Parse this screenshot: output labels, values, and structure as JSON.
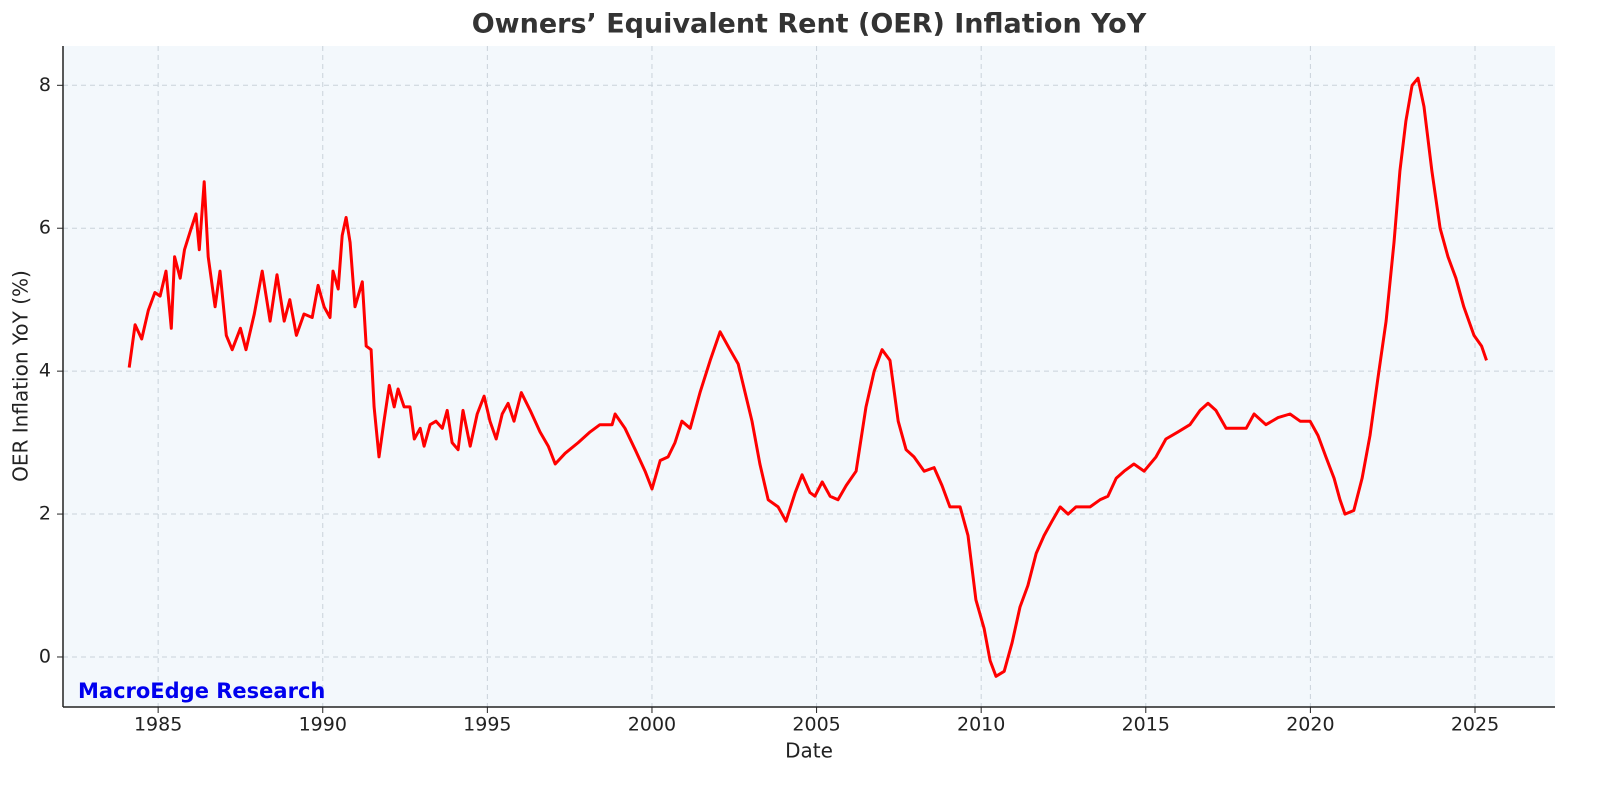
{
  "chart_data": {
    "type": "line",
    "title": "Owners’ Equivalent Rent (OER) Inflation YoY",
    "xlabel": "Date",
    "ylabel": "OER Inflation YoY (%)",
    "annotation": "MacroEdge Research",
    "grid": true,
    "xlim": [
      1982.11,
      2027.43
    ],
    "ylim": [
      -0.7,
      8.55
    ],
    "xticks": [
      1985,
      1990,
      1995,
      2000,
      2005,
      2010,
      2015,
      2020,
      2025
    ],
    "yticks": [
      0,
      2,
      4,
      6,
      8
    ],
    "series": [
      {
        "name": "OER Inflation YoY",
        "color": "#ff0000",
        "x": [
          1984.12,
          1984.3,
          1984.5,
          1984.7,
          1984.9,
          1985.06,
          1985.24,
          1985.4,
          1985.5,
          1985.67,
          1985.8,
          1985.97,
          1986.15,
          1986.25,
          1986.4,
          1986.52,
          1986.73,
          1986.88,
          1987.07,
          1987.25,
          1987.5,
          1987.67,
          1987.92,
          1988.16,
          1988.4,
          1988.61,
          1988.83,
          1989.0,
          1989.2,
          1989.43,
          1989.68,
          1989.86,
          1990.04,
          1990.22,
          1990.31,
          1990.47,
          1990.59,
          1990.71,
          1990.83,
          1990.98,
          1991.2,
          1991.32,
          1991.47,
          1991.56,
          1991.71,
          1991.86,
          1992.02,
          1992.17,
          1992.29,
          1992.47,
          1992.65,
          1992.78,
          1992.96,
          1993.08,
          1993.26,
          1993.44,
          1993.63,
          1993.78,
          1993.93,
          1994.11,
          1994.26,
          1994.48,
          1994.69,
          1994.9,
          1995.08,
          1995.27,
          1995.45,
          1995.63,
          1995.81,
          1996.03,
          1996.3,
          1996.6,
          1996.85,
          1997.06,
          1997.36,
          1997.76,
          1998.12,
          1998.42,
          1998.79,
          1998.88,
          1999.18,
          1999.49,
          1999.79,
          2000.0,
          2000.25,
          2000.49,
          2000.7,
          2000.91,
          2001.16,
          2001.46,
          2001.77,
          2002.07,
          2002.37,
          2002.62,
          2002.83,
          2003.04,
          2003.28,
          2003.53,
          2003.83,
          2004.07,
          2004.35,
          2004.56,
          2004.8,
          2004.95,
          2005.17,
          2005.41,
          2005.65,
          2005.9,
          2006.2,
          2006.5,
          2006.75,
          2006.99,
          2007.23,
          2007.48,
          2007.72,
          2007.96,
          2008.27,
          2008.57,
          2008.81,
          2009.05,
          2009.36,
          2009.6,
          2009.84,
          2010.09,
          2010.27,
          2010.45,
          2010.7,
          2010.94,
          2011.18,
          2011.42,
          2011.67,
          2011.91,
          2012.15,
          2012.4,
          2012.64,
          2012.88,
          2013.31,
          2013.61,
          2013.85,
          2014.1,
          2014.34,
          2014.64,
          2014.95,
          2015.31,
          2015.61,
          2015.98,
          2016.34,
          2016.65,
          2016.89,
          2017.13,
          2017.44,
          2017.74,
          2018.05,
          2018.29,
          2018.65,
          2019.02,
          2019.38,
          2019.69,
          2019.99,
          2020.23,
          2020.47,
          2020.72,
          2020.9,
          2021.05,
          2021.32,
          2021.57,
          2021.81,
          2022.05,
          2022.3,
          2022.54,
          2022.72,
          2022.9,
          2023.09,
          2023.27,
          2023.45,
          2023.69,
          2023.94,
          2024.18,
          2024.42,
          2024.66,
          2024.97,
          2025.2,
          2025.35
        ],
        "values": [
          4.05,
          4.65,
          4.45,
          4.85,
          5.1,
          5.05,
          5.4,
          4.6,
          5.6,
          5.3,
          5.7,
          5.95,
          6.2,
          5.7,
          6.65,
          5.6,
          4.9,
          5.4,
          4.5,
          4.3,
          4.6,
          4.3,
          4.8,
          5.4,
          4.7,
          5.35,
          4.7,
          5.0,
          4.5,
          4.8,
          4.75,
          5.2,
          4.9,
          4.75,
          5.4,
          5.15,
          5.9,
          6.15,
          5.8,
          4.9,
          5.25,
          4.35,
          4.3,
          3.5,
          2.8,
          3.3,
          3.8,
          3.5,
          3.75,
          3.5,
          3.5,
          3.05,
          3.2,
          2.95,
          3.25,
          3.3,
          3.2,
          3.45,
          3.0,
          2.9,
          3.45,
          2.95,
          3.4,
          3.65,
          3.3,
          3.05,
          3.4,
          3.55,
          3.3,
          3.7,
          3.45,
          3.15,
          2.95,
          2.7,
          2.85,
          3.0,
          3.15,
          3.25,
          3.25,
          3.4,
          3.2,
          2.9,
          2.6,
          2.35,
          2.75,
          2.8,
          3.0,
          3.3,
          3.2,
          3.7,
          4.15,
          4.55,
          4.3,
          4.1,
          3.7,
          3.3,
          2.7,
          2.2,
          2.1,
          1.9,
          2.3,
          2.55,
          2.3,
          2.25,
          2.45,
          2.25,
          2.2,
          2.4,
          2.6,
          3.5,
          4.0,
          4.3,
          4.15,
          3.3,
          2.9,
          2.8,
          2.6,
          2.65,
          2.4,
          2.1,
          2.1,
          1.7,
          0.8,
          0.4,
          -0.05,
          -0.27,
          -0.2,
          0.2,
          0.7,
          1.0,
          1.45,
          1.7,
          1.9,
          2.1,
          2.0,
          2.1,
          2.1,
          2.2,
          2.25,
          2.5,
          2.6,
          2.7,
          2.6,
          2.8,
          3.05,
          3.15,
          3.25,
          3.45,
          3.55,
          3.45,
          3.2,
          3.2,
          3.2,
          3.4,
          3.25,
          3.35,
          3.4,
          3.3,
          3.3,
          3.1,
          2.8,
          2.5,
          2.2,
          2.0,
          2.05,
          2.5,
          3.1,
          3.9,
          4.7,
          5.8,
          6.8,
          7.5,
          8.0,
          8.1,
          7.7,
          6.8,
          6.0,
          5.6,
          5.3,
          4.9,
          4.5,
          4.35,
          4.15
        ]
      }
    ]
  }
}
